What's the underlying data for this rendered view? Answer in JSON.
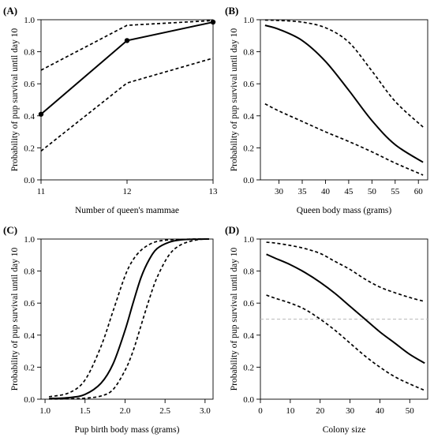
{
  "figure": {
    "panels": [
      "(A)",
      "(B)",
      "(C)",
      "(D)"
    ]
  },
  "chart_data": [
    {
      "panel_label": "(A)",
      "type": "line",
      "xlabel": "Number of queen's mammae",
      "ylabel": "Probability of pup survival until day 10",
      "xlim": [
        11,
        13
      ],
      "ylim": [
        0,
        1
      ],
      "xticks": [
        11,
        12,
        13
      ],
      "yticks": [
        "0.0",
        "0.2",
        "0.4",
        "0.6",
        "0.8",
        "1.0"
      ],
      "x": [
        11,
        12,
        13
      ],
      "series": [
        {
          "role": "estimate",
          "style": "solid",
          "markers": true,
          "values": [
            0.41,
            0.87,
            0.985
          ]
        },
        {
          "role": "upper",
          "style": "dashed",
          "values": [
            0.685,
            0.965,
            0.995
          ]
        },
        {
          "role": "lower",
          "style": "dashed",
          "values": [
            0.18,
            0.605,
            0.76
          ]
        }
      ]
    },
    {
      "panel_label": "(B)",
      "type": "line",
      "xlabel": "Queen body mass (grams)",
      "ylabel": "Probability of pup survival until day 10",
      "xlim": [
        26,
        62
      ],
      "ylim": [
        0,
        1
      ],
      "xticks": [
        30,
        35,
        40,
        45,
        50,
        55,
        60
      ],
      "yticks": [
        "0.0",
        "0.2",
        "0.4",
        "0.6",
        "0.8",
        "1.0"
      ],
      "x": [
        27,
        30,
        35,
        40,
        45,
        50,
        55,
        61
      ],
      "series": [
        {
          "role": "estimate",
          "style": "solid",
          "values": [
            0.965,
            0.94,
            0.87,
            0.74,
            0.56,
            0.37,
            0.22,
            0.11
          ]
        },
        {
          "role": "upper",
          "style": "dashed",
          "values": [
            0.998,
            0.995,
            0.985,
            0.95,
            0.86,
            0.68,
            0.49,
            0.33
          ]
        },
        {
          "role": "lower",
          "style": "dashed",
          "values": [
            0.475,
            0.43,
            0.365,
            0.3,
            0.24,
            0.175,
            0.105,
            0.03
          ]
        }
      ]
    },
    {
      "panel_label": "(C)",
      "type": "line",
      "xlabel": "Pup birth body mass (grams)",
      "ylabel": "Probability of pup survival until day 10",
      "xlim": [
        0.95,
        3.1
      ],
      "ylim": [
        0,
        1
      ],
      "xticks": [
        "1.0",
        "1.5",
        "2.0",
        "2.5",
        "3.0"
      ],
      "yticks": [
        "0.0",
        "0.2",
        "0.4",
        "0.6",
        "0.8",
        "1.0"
      ],
      "x": [
        1.05,
        1.3,
        1.5,
        1.7,
        1.85,
        2.0,
        2.1,
        2.2,
        2.3,
        2.4,
        2.55,
        2.7,
        2.9,
        3.05
      ],
      "series": [
        {
          "role": "estimate",
          "style": "solid",
          "values": [
            0.004,
            0.01,
            0.03,
            0.1,
            0.22,
            0.43,
            0.6,
            0.76,
            0.87,
            0.94,
            0.98,
            0.995,
            0.999,
            1.0
          ]
        },
        {
          "role": "upper",
          "style": "dashed",
          "values": [
            0.015,
            0.04,
            0.12,
            0.33,
            0.55,
            0.77,
            0.87,
            0.93,
            0.965,
            0.985,
            0.995,
            0.998,
            1.0,
            1.0
          ]
        },
        {
          "role": "lower",
          "style": "dashed",
          "values": [
            0.001,
            0.002,
            0.006,
            0.02,
            0.06,
            0.18,
            0.3,
            0.46,
            0.62,
            0.76,
            0.9,
            0.965,
            0.995,
            1.0
          ]
        }
      ]
    },
    {
      "panel_label": "(D)",
      "type": "line",
      "xlabel": "Colony size",
      "ylabel": "Probability of pup survival until day 10",
      "xlim": [
        0,
        56
      ],
      "ylim": [
        0,
        1
      ],
      "xticks": [
        0,
        10,
        20,
        30,
        40,
        50
      ],
      "yticks": [
        "0.0",
        "0.2",
        "0.4",
        "0.6",
        "0.8",
        "1.0"
      ],
      "reference_line": {
        "y": 0.5,
        "style": "dashed",
        "color": "#bbbbbb"
      },
      "x": [
        2,
        5,
        10,
        15,
        20,
        25,
        30,
        35,
        40,
        45,
        50,
        55
      ],
      "series": [
        {
          "role": "estimate",
          "style": "solid",
          "values": [
            0.905,
            0.88,
            0.84,
            0.79,
            0.73,
            0.66,
            0.58,
            0.5,
            0.42,
            0.35,
            0.28,
            0.225
          ]
        },
        {
          "role": "upper",
          "style": "dashed",
          "values": [
            0.98,
            0.975,
            0.96,
            0.94,
            0.91,
            0.86,
            0.81,
            0.75,
            0.7,
            0.665,
            0.635,
            0.61
          ]
        },
        {
          "role": "lower",
          "style": "dashed",
          "values": [
            0.65,
            0.63,
            0.6,
            0.56,
            0.5,
            0.43,
            0.35,
            0.27,
            0.2,
            0.14,
            0.095,
            0.055
          ]
        }
      ]
    }
  ]
}
